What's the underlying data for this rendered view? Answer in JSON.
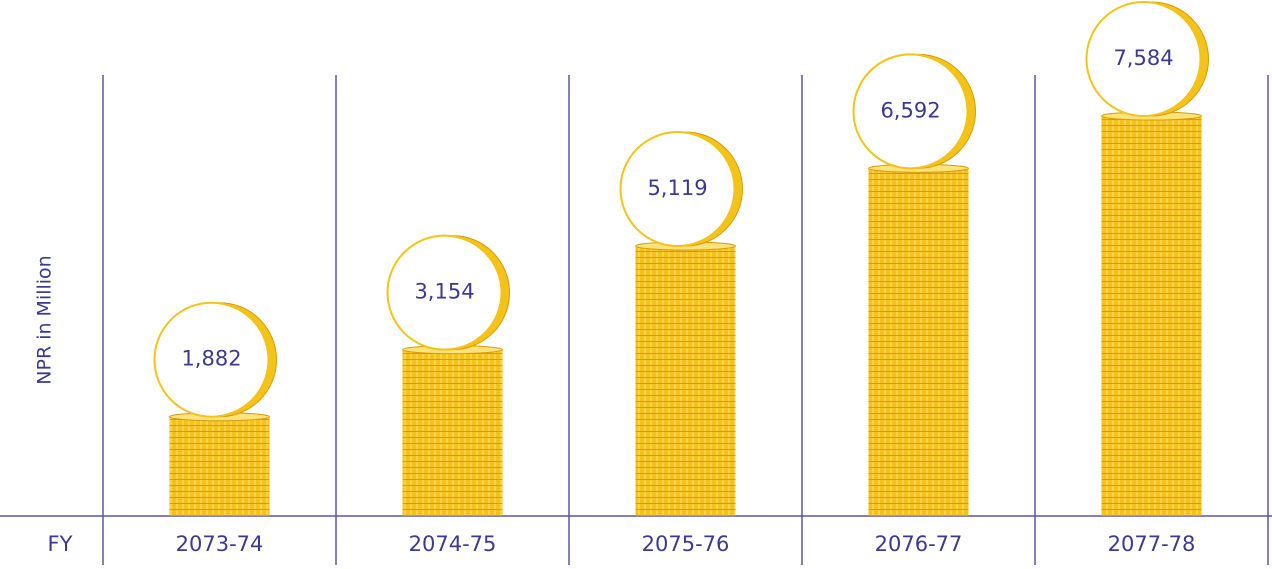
{
  "chart_data": {
    "type": "bar",
    "x_label": "FY",
    "y_label": "NPR in Million",
    "categories": [
      "2073-74",
      "2074-75",
      "2075-76",
      "2076-77",
      "2077-78"
    ],
    "values": [
      1882,
      3154,
      5119,
      6592,
      7584
    ],
    "value_labels": [
      "1,882",
      "3,154",
      "5,119",
      "6,592",
      "7,584"
    ],
    "color": "#f4c319"
  }
}
